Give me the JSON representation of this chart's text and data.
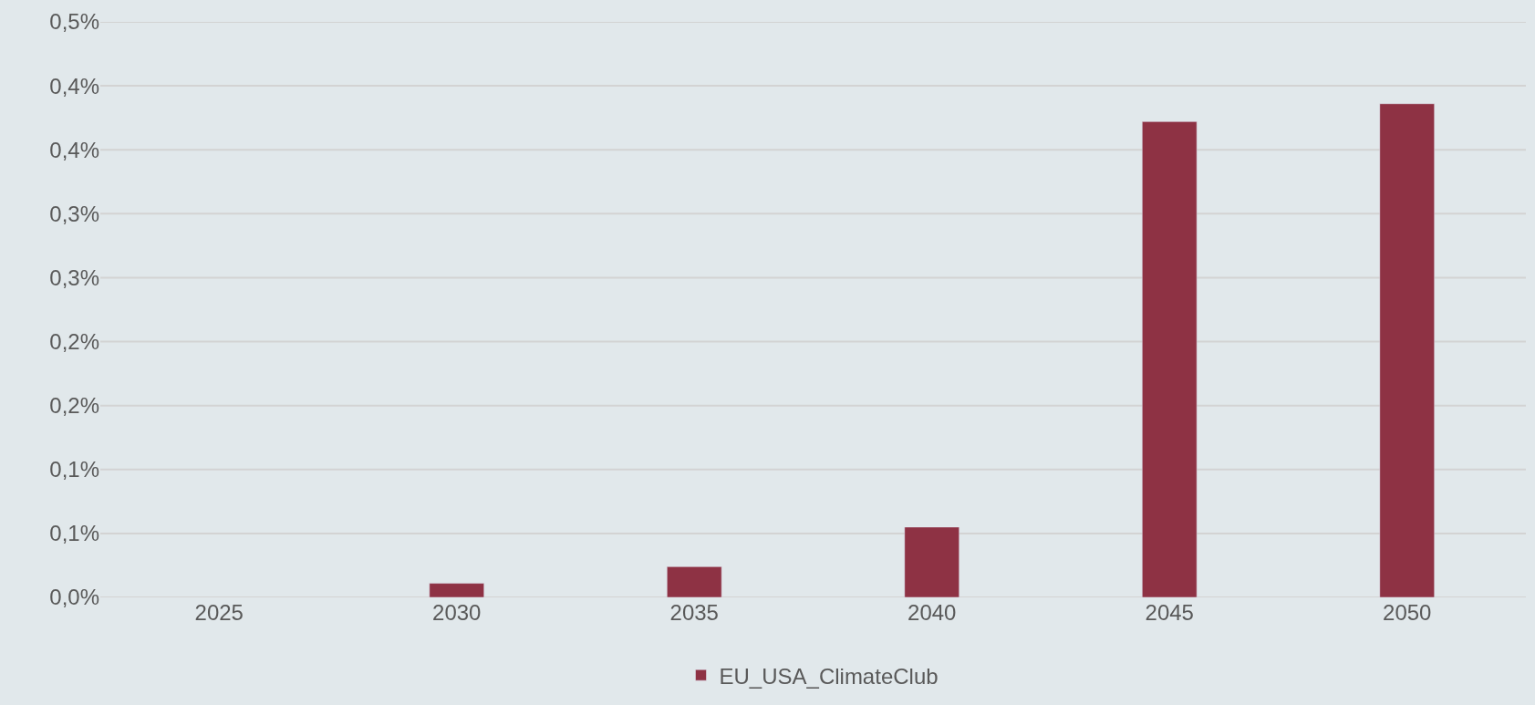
{
  "chart_data": {
    "type": "bar",
    "categories": [
      "2025",
      "2030",
      "2035",
      "2040",
      "2045",
      "2050"
    ],
    "series": [
      {
        "name": "EU_USA_ClimateClub",
        "color": "#8e3244",
        "values": [
          null,
          0.011,
          0.024,
          0.055,
          0.372,
          0.386
        ]
      }
    ],
    "ylim": [
      0,
      0.45
    ],
    "yticks": [
      {
        "value": 0,
        "label": "0,0%"
      },
      {
        "value": 0.05,
        "label": "0,1%"
      },
      {
        "value": 0.1,
        "label": "0,1%"
      },
      {
        "value": 0.15,
        "label": "0,2%"
      },
      {
        "value": 0.2,
        "label": "0,2%"
      },
      {
        "value": 0.25,
        "label": "0,3%"
      },
      {
        "value": 0.3,
        "label": "0,3%"
      },
      {
        "value": 0.35,
        "label": "0,4%"
      },
      {
        "value": 0.4,
        "label": "0,4%"
      },
      {
        "value": 0.45,
        "label": "0,5%"
      }
    ],
    "grid": "y",
    "legend": "bottom"
  }
}
